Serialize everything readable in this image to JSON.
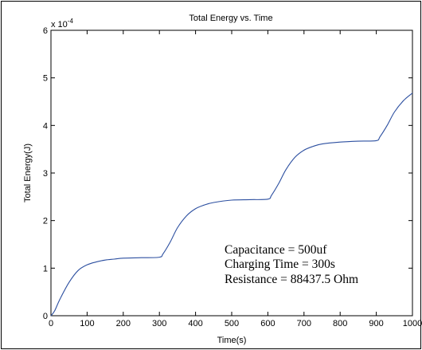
{
  "chart_data": {
    "type": "line",
    "title": "Total Energy vs. Time",
    "xlabel": "Time(s)",
    "ylabel": "Total Energy(J)",
    "y_multiplier": "x 10",
    "y_exponent": "-4",
    "xlim": [
      0,
      1000
    ],
    "ylim": [
      0,
      6
    ],
    "x_ticks": [
      0,
      100,
      200,
      300,
      400,
      500,
      600,
      700,
      800,
      900,
      1000
    ],
    "y_ticks": [
      0,
      1,
      2,
      3,
      4,
      5,
      6
    ],
    "grid": false,
    "line_color": "#2c4fa0",
    "series": [
      {
        "x": [
          0,
          10,
          25,
          50,
          75,
          100,
          125,
          150,
          175,
          200,
          250,
          300,
          310,
          330,
          350,
          375,
          400,
          425,
          450,
          500,
          550,
          600,
          610,
          630,
          650,
          675,
          700,
          725,
          750,
          800,
          850,
          900,
          910,
          930,
          950,
          975,
          1000
        ],
        "y": [
          0,
          0.1,
          0.35,
          0.7,
          0.95,
          1.07,
          1.13,
          1.17,
          1.19,
          1.21,
          1.22,
          1.23,
          1.3,
          1.55,
          1.85,
          2.1,
          2.25,
          2.33,
          2.38,
          2.43,
          2.44,
          2.45,
          2.53,
          2.78,
          3.07,
          3.33,
          3.48,
          3.56,
          3.61,
          3.65,
          3.67,
          3.68,
          3.76,
          4.0,
          4.28,
          4.52,
          4.68
        ]
      }
    ],
    "annotations": [
      "Capacitance = 500uf",
      "Charging Time = 300s",
      "Resistance = 88437.5 Ohm"
    ]
  }
}
